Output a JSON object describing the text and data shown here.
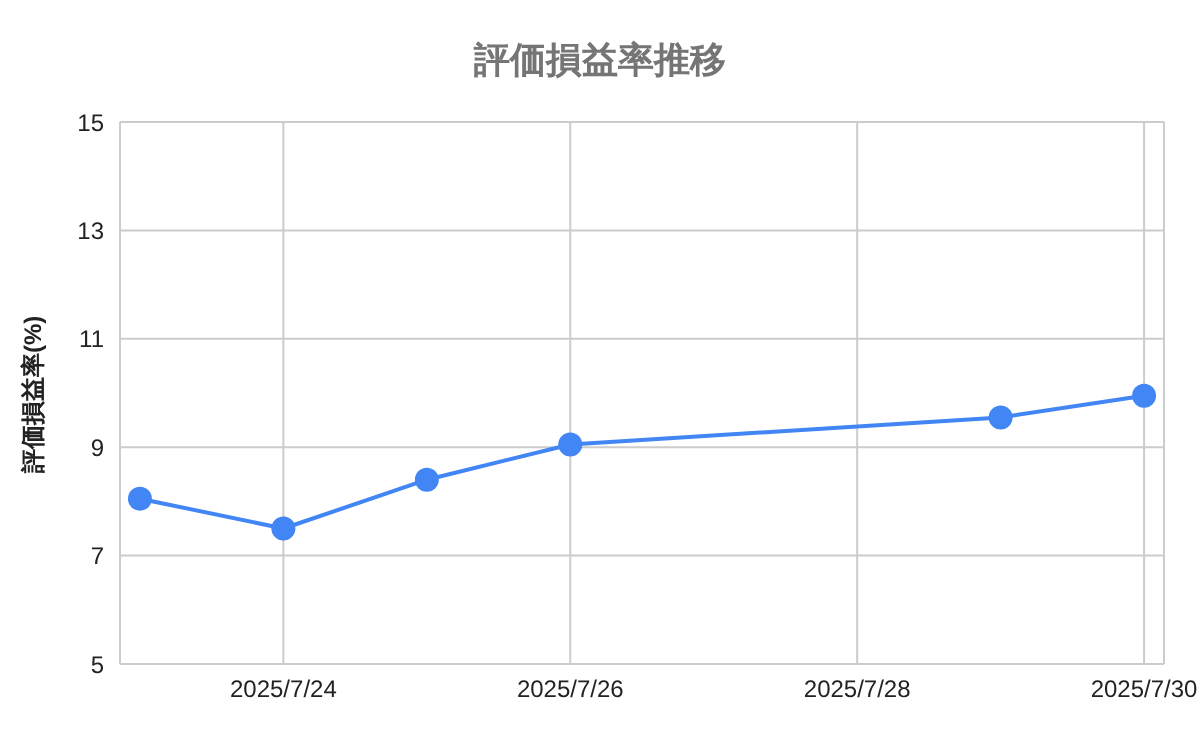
{
  "chart_data": {
    "type": "line",
    "title": "評価損益率推移",
    "ylabel": "評価損益率(%)",
    "x": [
      "2025-07-23",
      "2025-07-24",
      "2025-07-25",
      "2025-07-26",
      "2025-07-29",
      "2025-07-30"
    ],
    "series": [
      {
        "color": "#4285f4",
        "values": [
          8.05,
          7.5,
          8.4,
          9.05,
          9.55,
          9.95
        ]
      }
    ],
    "xlim": [
      "2025-07-22T20:40",
      "2025-07-30T03:20"
    ],
    "xticks": [
      {
        "value": "2025-07-24",
        "label": "2025/7/24"
      },
      {
        "value": "2025-07-26",
        "label": "2025/7/26"
      },
      {
        "value": "2025-07-28",
        "label": "2025/7/28"
      },
      {
        "value": "2025-07-30",
        "label": "2025/7/30"
      }
    ],
    "ylim": [
      5,
      15
    ],
    "yticks": [
      5,
      7,
      9,
      11,
      13,
      15
    ],
    "grid": true,
    "marker": "circle",
    "line_style": "solid",
    "legend": false
  }
}
